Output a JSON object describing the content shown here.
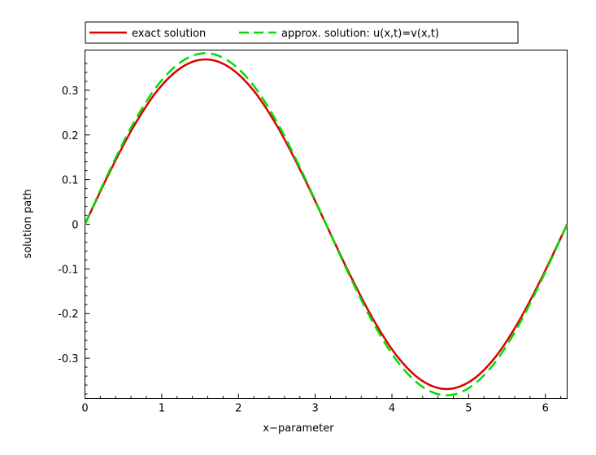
{
  "chart_data": {
    "type": "line",
    "title": "",
    "xlabel": "x−parameter",
    "ylabel": "solution path",
    "xlim": [
      0,
      6.2832
    ],
    "ylim": [
      -0.39,
      0.39
    ],
    "xticks": [
      0,
      1,
      2,
      3,
      4,
      5,
      6
    ],
    "xtick_labels": [
      "0",
      "1",
      "2",
      "3",
      "4",
      "5",
      "6"
    ],
    "yticks": [
      0.3,
      0.2,
      0.1,
      0,
      -0.1,
      -0.2,
      -0.3
    ],
    "ytick_labels": [
      "0.3",
      "0.2",
      "0.1",
      "0",
      "-0.1",
      "-0.2",
      "-0.3"
    ],
    "grid": false,
    "legend_position": "top",
    "series": [
      {
        "name": "exact solution",
        "color": "#dd0000",
        "dash": "solid",
        "x": [
          0,
          0.3142,
          0.6283,
          0.9425,
          1.2566,
          1.5708,
          1.885,
          2.1991,
          2.5133,
          2.8274,
          3.1416,
          3.4558,
          3.7699,
          4.0841,
          4.3982,
          4.7124,
          5.0265,
          5.3407,
          5.6549,
          5.969,
          6.2832
        ],
        "y": [
          0,
          0.114,
          0.217,
          0.299,
          0.351,
          0.369,
          0.351,
          0.299,
          0.217,
          0.114,
          0,
          -0.114,
          -0.217,
          -0.299,
          -0.351,
          -0.369,
          -0.351,
          -0.299,
          -0.217,
          -0.114,
          0
        ]
      },
      {
        "name": "approx. solution: u(x,t)=v(x,t)",
        "color": "#00dd00",
        "dash": "dashed",
        "x": [
          0,
          0.3142,
          0.6283,
          0.9425,
          1.2566,
          1.5708,
          1.885,
          2.1991,
          2.5133,
          2.8274,
          3.1416,
          3.4558,
          3.7699,
          4.0841,
          4.3982,
          4.7124,
          5.0265,
          5.3407,
          5.6549,
          5.969,
          6.2832
        ],
        "y": [
          0,
          0.118,
          0.225,
          0.31,
          0.364,
          0.383,
          0.364,
          0.31,
          0.225,
          0.118,
          0,
          -0.118,
          -0.225,
          -0.31,
          -0.364,
          -0.383,
          -0.364,
          -0.31,
          -0.225,
          -0.118,
          0
        ]
      }
    ]
  }
}
